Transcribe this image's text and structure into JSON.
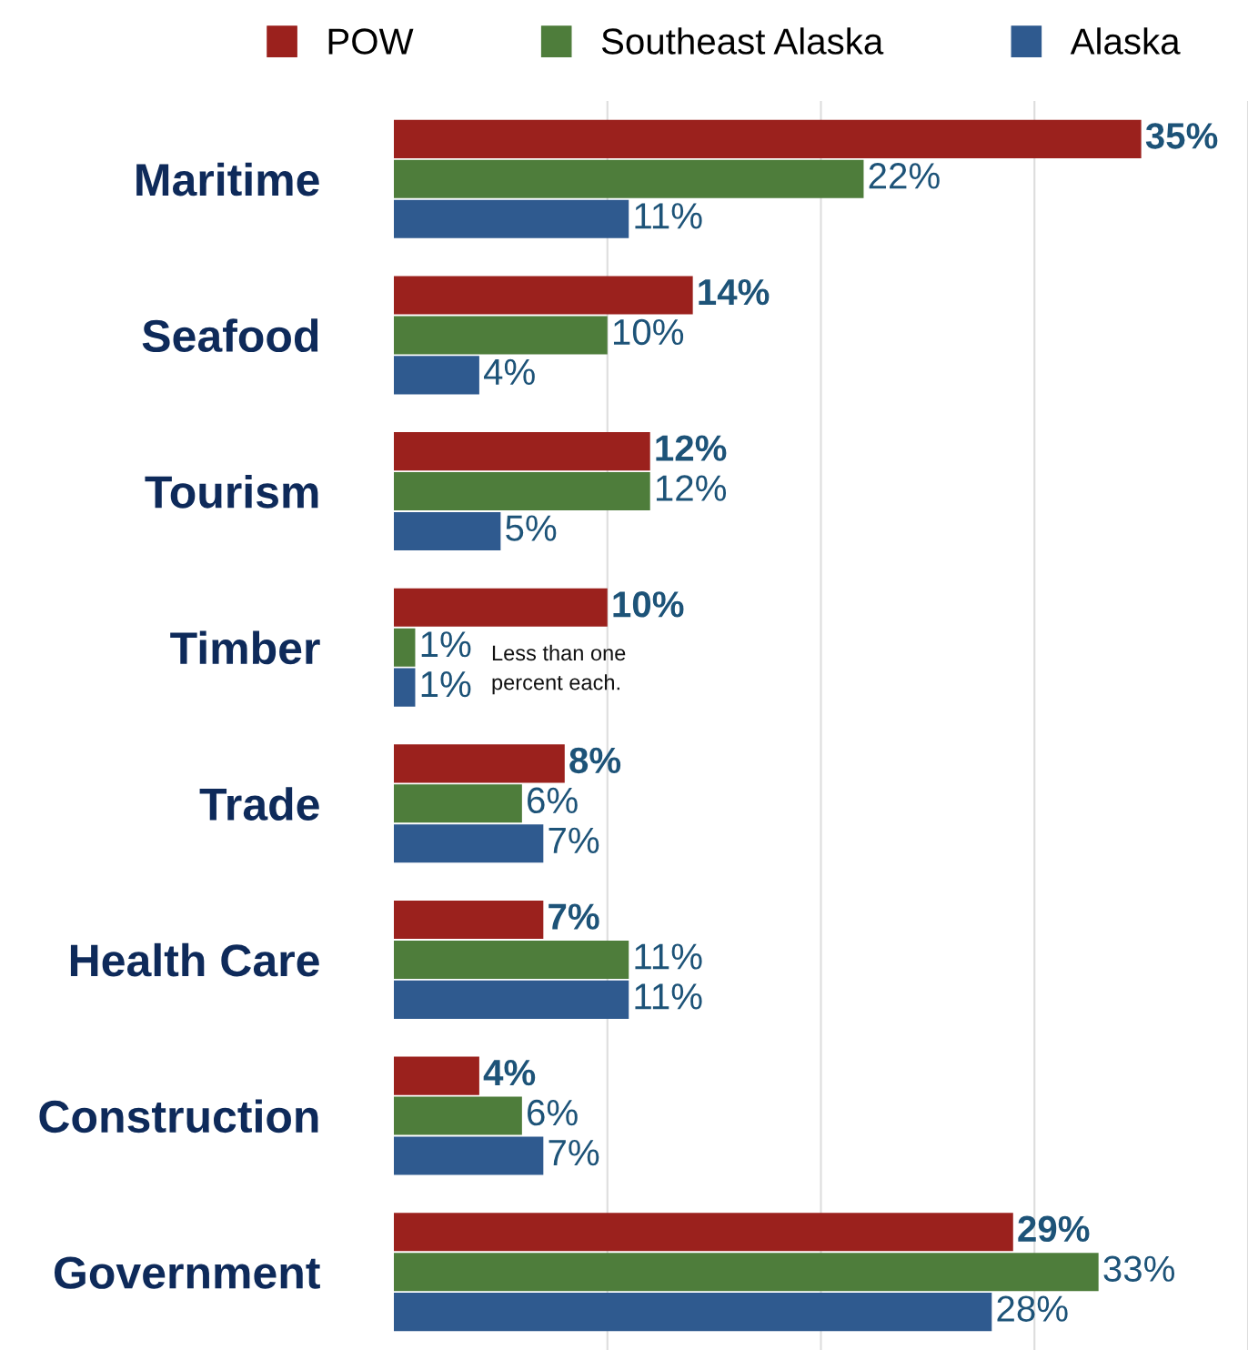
{
  "chart_data": {
    "type": "bar",
    "orientation": "horizontal",
    "categories": [
      "Maritime",
      "Seafood",
      "Tourism",
      "Timber",
      "Trade",
      "Health Care",
      "Construction",
      "Government"
    ],
    "series": [
      {
        "name": "POW",
        "color": "#9b211d",
        "values": [
          35,
          14,
          12,
          10,
          8,
          7,
          4,
          29
        ],
        "value_labels": [
          "35%",
          "14%",
          "12%",
          "10%",
          "8%",
          "7%",
          "4%",
          "29%"
        ]
      },
      {
        "name": "Southeast Alaska",
        "color": "#4e7d3b",
        "values": [
          22,
          10,
          12,
          1,
          6,
          11,
          6,
          33
        ],
        "value_labels": [
          "22%",
          "10%",
          "12%",
          "1%",
          "6%",
          "11%",
          "6%",
          "33%"
        ]
      },
      {
        "name": "Alaska",
        "color": "#2f5a8f",
        "values": [
          11,
          4,
          5,
          1,
          7,
          11,
          7,
          28
        ],
        "value_labels": [
          "11%",
          "4%",
          "5%",
          "1%",
          "7%",
          "11%",
          "7%",
          "28%"
        ]
      }
    ],
    "xticks": [
      {
        "value": 10,
        "label": null
      },
      {
        "value": 20,
        "label": null
      },
      {
        "value": 30,
        "label": null
      },
      {
        "value": 40,
        "label": null
      }
    ],
    "grid": "x",
    "legend": "top",
    "tick_labels": "y",
    "annotations": [
      "Less than one percent each."
    ]
  }
}
